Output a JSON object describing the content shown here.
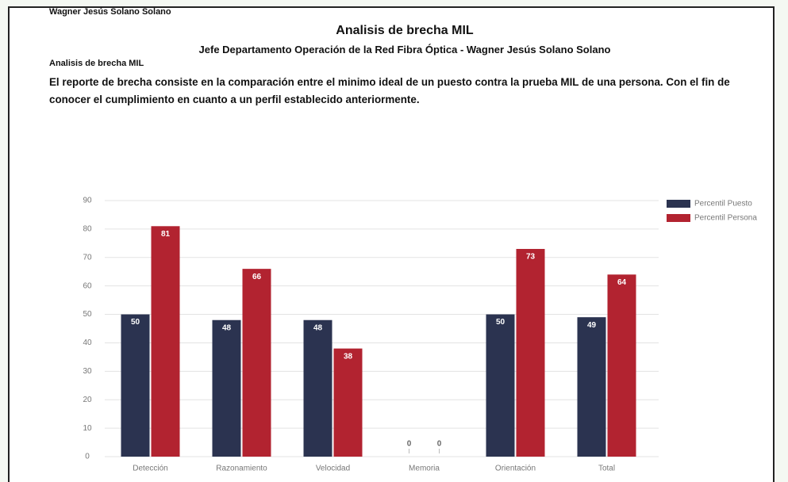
{
  "header": {
    "name": "Wagner Jesús Solano Solano",
    "title": "Analisis de brecha MIL",
    "subtitle": "Jefe Departamento Operación de la Red Fibra Óptica  -  Wagner Jesús Solano Solano",
    "section": "Analisis de brecha MIL",
    "description": "El reporte de brecha consiste en la comparación entre el minimo ideal de un puesto contra la prueba MIL de una persona. Con el fin de conocer el cumplimiento en cuanto a un perfil establecido anteriormente."
  },
  "chart_data": {
    "type": "bar",
    "categories": [
      "Detección",
      "Razonamiento",
      "Velocidad",
      "Memoria",
      "Orientación",
      "Total"
    ],
    "series": [
      {
        "name": "Percentil Puesto",
        "color": "#2b3350",
        "values": [
          50,
          48,
          48,
          0,
          50,
          49
        ]
      },
      {
        "name": "Percentil Persona",
        "color": "#b22330",
        "values": [
          81,
          66,
          38,
          0,
          73,
          64
        ]
      }
    ],
    "ylim": [
      0,
      90
    ],
    "yticks": [
      0,
      10,
      20,
      30,
      40,
      50,
      60,
      70,
      80,
      90
    ],
    "grid": true,
    "legend": "top-right"
  }
}
